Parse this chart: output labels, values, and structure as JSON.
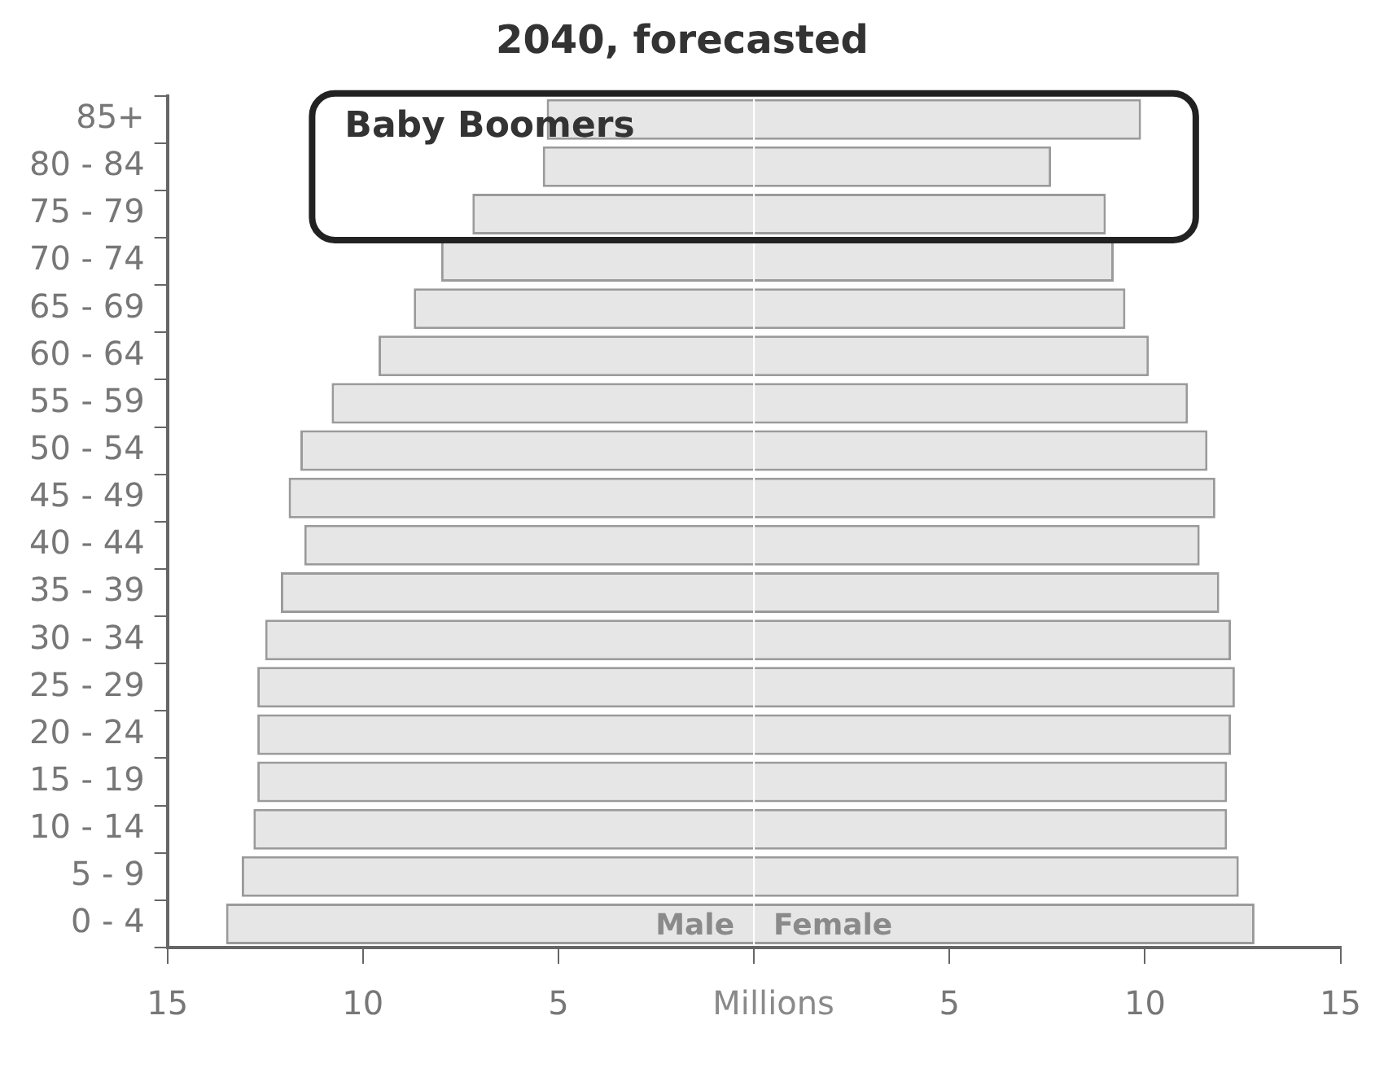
{
  "chart_data": {
    "type": "bar",
    "orientation": "horizontal",
    "stacked": true,
    "title": "2040, forecasted",
    "xlabel": "Millions",
    "categories": [
      "85+",
      "80 - 84",
      "75 - 79",
      "70 - 74",
      "65 - 69",
      "60 - 64",
      "55 - 59",
      "50 - 54",
      "45 - 49",
      "40 - 44",
      "35 - 39",
      "30 - 34",
      "25 - 29",
      "20 - 24",
      "15 - 19",
      "10 - 14",
      "5 - 9",
      "0 - 4"
    ],
    "series": [
      {
        "name": "Male",
        "color": "#e6e6e6",
        "values": [
          -5.3,
          -5.4,
          -7.2,
          -8.0,
          -8.7,
          -9.6,
          -10.8,
          -11.6,
          -11.9,
          -11.5,
          -12.1,
          -12.5,
          -12.7,
          -12.7,
          -12.7,
          -12.8,
          -13.1,
          -13.5
        ]
      },
      {
        "name": "Female",
        "color": "#e6e6e6",
        "values": [
          9.9,
          7.6,
          9.0,
          9.2,
          9.5,
          10.1,
          11.1,
          11.6,
          11.8,
          11.4,
          11.9,
          12.2,
          12.3,
          12.2,
          12.1,
          12.1,
          12.4,
          12.8
        ]
      }
    ],
    "xlim": [
      -15,
      15
    ],
    "xticks": [
      {
        "value": -15,
        "label": "15"
      },
      {
        "value": -10,
        "label": "10"
      },
      {
        "value": -5,
        "label": "5"
      },
      {
        "value": 0,
        "label": null
      },
      {
        "value": 5,
        "label": "5"
      },
      {
        "value": 10,
        "label": "10"
      },
      {
        "value": 15,
        "label": "15"
      }
    ],
    "annotations": [
      "Baby Boomers"
    ],
    "grid": false,
    "legend": false
  }
}
